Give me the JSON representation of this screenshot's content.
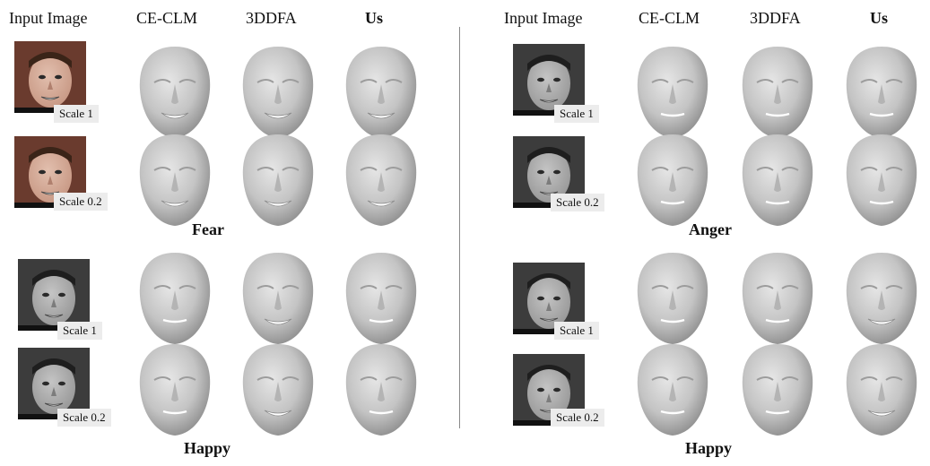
{
  "columns": [
    "Input Image",
    "CE-CLM",
    "3DDFA",
    "Us"
  ],
  "left": {
    "top_label": "Fear",
    "bottom_label": "Happy",
    "rows": [
      {
        "scale": "Scale 1"
      },
      {
        "scale": "Scale 0.2"
      },
      {
        "scale": "Scale 1"
      },
      {
        "scale": "Scale 0.2"
      }
    ]
  },
  "right": {
    "top_label": "Anger",
    "bottom_label": "Happy",
    "rows": [
      {
        "scale": "Scale 1"
      },
      {
        "scale": "Scale 0.2"
      },
      {
        "scale": "Scale 1"
      },
      {
        "scale": "Scale 0.2"
      }
    ]
  },
  "colors": {
    "background": "#ffffff",
    "face_shade": "#bdbdbd",
    "label_box": "#ececec",
    "divider": "#8a8a8a"
  }
}
